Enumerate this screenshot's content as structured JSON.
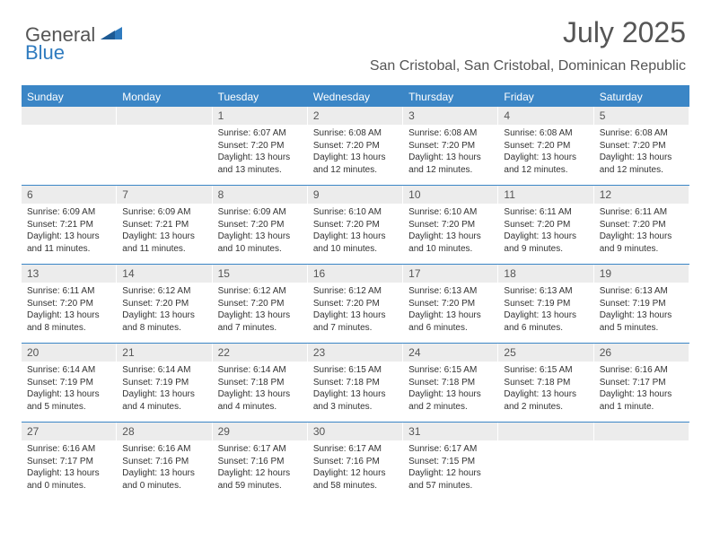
{
  "brand": {
    "word1": "General",
    "word2": "Blue"
  },
  "colors": {
    "header_bar": "#3b86c6",
    "daynum_bg": "#ececec",
    "text": "#333333",
    "muted": "#555555",
    "brand_blue": "#2f7bbf",
    "white": "#ffffff"
  },
  "typography": {
    "month_fontsize": 32,
    "location_fontsize": 16,
    "dow_fontsize": 12,
    "daynum_fontsize": 12,
    "cell_fontsize": 10
  },
  "title": "July 2025",
  "location": "San Cristobal, San Cristobal, Dominican Republic",
  "dow": [
    "Sunday",
    "Monday",
    "Tuesday",
    "Wednesday",
    "Thursday",
    "Friday",
    "Saturday"
  ],
  "weeks": [
    [
      {
        "num": "",
        "lines": ""
      },
      {
        "num": "",
        "lines": ""
      },
      {
        "num": "1",
        "lines": "Sunrise: 6:07 AM\nSunset: 7:20 PM\nDaylight: 13 hours and 13 minutes."
      },
      {
        "num": "2",
        "lines": "Sunrise: 6:08 AM\nSunset: 7:20 PM\nDaylight: 13 hours and 12 minutes."
      },
      {
        "num": "3",
        "lines": "Sunrise: 6:08 AM\nSunset: 7:20 PM\nDaylight: 13 hours and 12 minutes."
      },
      {
        "num": "4",
        "lines": "Sunrise: 6:08 AM\nSunset: 7:20 PM\nDaylight: 13 hours and 12 minutes."
      },
      {
        "num": "5",
        "lines": "Sunrise: 6:08 AM\nSunset: 7:20 PM\nDaylight: 13 hours and 12 minutes."
      }
    ],
    [
      {
        "num": "6",
        "lines": "Sunrise: 6:09 AM\nSunset: 7:21 PM\nDaylight: 13 hours and 11 minutes."
      },
      {
        "num": "7",
        "lines": "Sunrise: 6:09 AM\nSunset: 7:21 PM\nDaylight: 13 hours and 11 minutes."
      },
      {
        "num": "8",
        "lines": "Sunrise: 6:09 AM\nSunset: 7:20 PM\nDaylight: 13 hours and 10 minutes."
      },
      {
        "num": "9",
        "lines": "Sunrise: 6:10 AM\nSunset: 7:20 PM\nDaylight: 13 hours and 10 minutes."
      },
      {
        "num": "10",
        "lines": "Sunrise: 6:10 AM\nSunset: 7:20 PM\nDaylight: 13 hours and 10 minutes."
      },
      {
        "num": "11",
        "lines": "Sunrise: 6:11 AM\nSunset: 7:20 PM\nDaylight: 13 hours and 9 minutes."
      },
      {
        "num": "12",
        "lines": "Sunrise: 6:11 AM\nSunset: 7:20 PM\nDaylight: 13 hours and 9 minutes."
      }
    ],
    [
      {
        "num": "13",
        "lines": "Sunrise: 6:11 AM\nSunset: 7:20 PM\nDaylight: 13 hours and 8 minutes."
      },
      {
        "num": "14",
        "lines": "Sunrise: 6:12 AM\nSunset: 7:20 PM\nDaylight: 13 hours and 8 minutes."
      },
      {
        "num": "15",
        "lines": "Sunrise: 6:12 AM\nSunset: 7:20 PM\nDaylight: 13 hours and 7 minutes."
      },
      {
        "num": "16",
        "lines": "Sunrise: 6:12 AM\nSunset: 7:20 PM\nDaylight: 13 hours and 7 minutes."
      },
      {
        "num": "17",
        "lines": "Sunrise: 6:13 AM\nSunset: 7:20 PM\nDaylight: 13 hours and 6 minutes."
      },
      {
        "num": "18",
        "lines": "Sunrise: 6:13 AM\nSunset: 7:19 PM\nDaylight: 13 hours and 6 minutes."
      },
      {
        "num": "19",
        "lines": "Sunrise: 6:13 AM\nSunset: 7:19 PM\nDaylight: 13 hours and 5 minutes."
      }
    ],
    [
      {
        "num": "20",
        "lines": "Sunrise: 6:14 AM\nSunset: 7:19 PM\nDaylight: 13 hours and 5 minutes."
      },
      {
        "num": "21",
        "lines": "Sunrise: 6:14 AM\nSunset: 7:19 PM\nDaylight: 13 hours and 4 minutes."
      },
      {
        "num": "22",
        "lines": "Sunrise: 6:14 AM\nSunset: 7:18 PM\nDaylight: 13 hours and 4 minutes."
      },
      {
        "num": "23",
        "lines": "Sunrise: 6:15 AM\nSunset: 7:18 PM\nDaylight: 13 hours and 3 minutes."
      },
      {
        "num": "24",
        "lines": "Sunrise: 6:15 AM\nSunset: 7:18 PM\nDaylight: 13 hours and 2 minutes."
      },
      {
        "num": "25",
        "lines": "Sunrise: 6:15 AM\nSunset: 7:18 PM\nDaylight: 13 hours and 2 minutes."
      },
      {
        "num": "26",
        "lines": "Sunrise: 6:16 AM\nSunset: 7:17 PM\nDaylight: 13 hours and 1 minute."
      }
    ],
    [
      {
        "num": "27",
        "lines": "Sunrise: 6:16 AM\nSunset: 7:17 PM\nDaylight: 13 hours and 0 minutes."
      },
      {
        "num": "28",
        "lines": "Sunrise: 6:16 AM\nSunset: 7:16 PM\nDaylight: 13 hours and 0 minutes."
      },
      {
        "num": "29",
        "lines": "Sunrise: 6:17 AM\nSunset: 7:16 PM\nDaylight: 12 hours and 59 minutes."
      },
      {
        "num": "30",
        "lines": "Sunrise: 6:17 AM\nSunset: 7:16 PM\nDaylight: 12 hours and 58 minutes."
      },
      {
        "num": "31",
        "lines": "Sunrise: 6:17 AM\nSunset: 7:15 PM\nDaylight: 12 hours and 57 minutes."
      },
      {
        "num": "",
        "lines": ""
      },
      {
        "num": "",
        "lines": ""
      }
    ]
  ]
}
